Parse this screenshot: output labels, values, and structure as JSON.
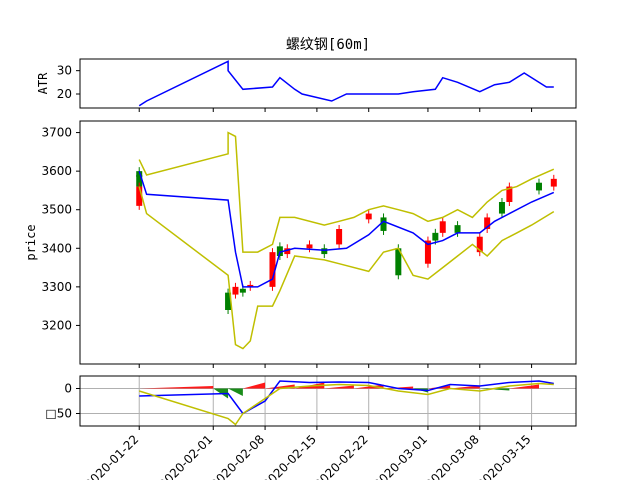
{
  "chart_data": {
    "type": "line",
    "title": "螺纹钢[60m]",
    "x_tick_labels": [
      "2020-01-22",
      "2020-02-01",
      "2020-02-08",
      "2020-02-15",
      "2020-02-22",
      "2020-03-01",
      "2020-03-08",
      "2020-03-15"
    ],
    "panels": [
      {
        "name": "atr",
        "ylabel": "ATR",
        "ylim": [
          14,
          35
        ],
        "yticks": [
          20,
          30
        ],
        "series": [
          {
            "color": "#0000ff",
            "x": [
              "2020-01-22",
              "2020-01-23",
              "2020-02-03",
              "2020-02-03",
              "2020-02-05",
              "2020-02-09",
              "2020-02-10",
              "2020-02-12",
              "2020-02-13",
              "2020-02-17",
              "2020-02-19",
              "2020-02-21",
              "2020-02-24",
              "2020-02-26",
              "2020-02-28",
              "2020-03-02",
              "2020-03-03",
              "2020-03-05",
              "2020-03-08",
              "2020-03-10",
              "2020-03-12",
              "2020-03-14",
              "2020-03-17",
              "2020-03-18"
            ],
            "values": [
              15,
              17,
              34,
              30,
              22,
              23,
              27,
              22,
              20,
              17,
              20,
              20,
              20,
              20,
              21,
              22,
              27,
              25,
              21,
              24,
              25,
              29,
              23,
              23
            ]
          }
        ]
      },
      {
        "name": "price",
        "ylabel": "price",
        "ylim": [
          3100,
          3730
        ],
        "yticks": [
          3200,
          3300,
          3400,
          3500,
          3600,
          3700
        ],
        "candles": [
          {
            "x": "2020-01-22",
            "open": 3600,
            "close": 3585,
            "up": false
          },
          {
            "x": "2020-01-22",
            "open": 3590,
            "close": 3560,
            "up": false
          },
          {
            "x": "2020-01-22",
            "open": 3560,
            "close": 3510,
            "up": true
          },
          {
            "x": "2020-02-03",
            "open": 3285,
            "close": 3240,
            "up": false
          },
          {
            "x": "2020-02-04",
            "open": 3300,
            "close": 3280,
            "up": true
          },
          {
            "x": "2020-02-05",
            "open": 3295,
            "close": 3285,
            "up": false
          },
          {
            "x": "2020-02-06",
            "open": 3305,
            "close": 3300,
            "up": true
          },
          {
            "x": "2020-02-09",
            "open": 3390,
            "close": 3300,
            "up": true
          },
          {
            "x": "2020-02-10",
            "open": 3405,
            "close": 3380,
            "up": false
          },
          {
            "x": "2020-02-11",
            "open": 3400,
            "close": 3385,
            "up": true
          },
          {
            "x": "2020-02-14",
            "open": 3410,
            "close": 3400,
            "up": true
          },
          {
            "x": "2020-02-16",
            "open": 3400,
            "close": 3385,
            "up": false
          },
          {
            "x": "2020-02-18",
            "open": 3450,
            "close": 3410,
            "up": true
          },
          {
            "x": "2020-02-22",
            "open": 3490,
            "close": 3475,
            "up": true
          },
          {
            "x": "2020-02-24",
            "open": 3480,
            "close": 3445,
            "up": false
          },
          {
            "x": "2020-02-26",
            "open": 3400,
            "close": 3330,
            "up": false
          },
          {
            "x": "2020-03-01",
            "open": 3420,
            "close": 3360,
            "up": true
          },
          {
            "x": "2020-03-02",
            "open": 3440,
            "close": 3420,
            "up": false
          },
          {
            "x": "2020-03-03",
            "open": 3470,
            "close": 3440,
            "up": true
          },
          {
            "x": "2020-03-05",
            "open": 3460,
            "close": 3440,
            "up": false
          },
          {
            "x": "2020-03-08",
            "open": 3430,
            "close": 3390,
            "up": true
          },
          {
            "x": "2020-03-09",
            "open": 3480,
            "close": 3450,
            "up": true
          },
          {
            "x": "2020-03-11",
            "open": 3520,
            "close": 3490,
            "up": false
          },
          {
            "x": "2020-03-12",
            "open": 3560,
            "close": 3520,
            "up": true
          },
          {
            "x": "2020-03-16",
            "open": 3570,
            "close": 3550,
            "up": false
          },
          {
            "x": "2020-03-18",
            "open": 3580,
            "close": 3560,
            "up": true
          }
        ],
        "series": [
          {
            "color": "#0000ff",
            "x": [
              "2020-01-22",
              "2020-01-23",
              "2020-02-03",
              "2020-02-04",
              "2020-02-05",
              "2020-02-07",
              "2020-02-09",
              "2020-02-10",
              "2020-02-12",
              "2020-02-16",
              "2020-02-19",
              "2020-02-22",
              "2020-02-24",
              "2020-02-28",
              "2020-03-01",
              "2020-03-03",
              "2020-03-05",
              "2020-03-08",
              "2020-03-10",
              "2020-03-12",
              "2020-03-15",
              "2020-03-18"
            ],
            "values": [
              3600,
              3540,
              3525,
              3390,
              3300,
              3300,
              3320,
              3390,
              3400,
              3395,
              3400,
              3435,
              3470,
              3440,
              3410,
              3420,
              3440,
              3440,
              3470,
              3490,
              3520,
              3545
            ]
          },
          {
            "color": "#bfbf00",
            "x": [
              "2020-01-22",
              "2020-01-23",
              "2020-02-03",
              "2020-02-03",
              "2020-02-04",
              "2020-02-05",
              "2020-02-07",
              "2020-02-09",
              "2020-02-10",
              "2020-02-12",
              "2020-02-16",
              "2020-02-18",
              "2020-02-20",
              "2020-02-22",
              "2020-02-24",
              "2020-02-26",
              "2020-02-28",
              "2020-03-01",
              "2020-03-03",
              "2020-03-05",
              "2020-03-07",
              "2020-03-09",
              "2020-03-11",
              "2020-03-13",
              "2020-03-15",
              "2020-03-18"
            ],
            "values": [
              3630,
              3590,
              3645,
              3700,
              3690,
              3390,
              3390,
              3410,
              3480,
              3480,
              3460,
              3470,
              3480,
              3500,
              3510,
              3500,
              3490,
              3470,
              3480,
              3500,
              3480,
              3520,
              3550,
              3560,
              3580,
              3605
            ]
          },
          {
            "color": "#bfbf00",
            "x": [
              "2020-01-22",
              "2020-01-23",
              "2020-02-03",
              "2020-02-04",
              "2020-02-05",
              "2020-02-06",
              "2020-02-07",
              "2020-02-09",
              "2020-02-10",
              "2020-02-12",
              "2020-02-16",
              "2020-02-18",
              "2020-02-22",
              "2020-02-24",
              "2020-02-26",
              "2020-02-28",
              "2020-03-01",
              "2020-03-03",
              "2020-03-05",
              "2020-03-07",
              "2020-03-09",
              "2020-03-11",
              "2020-03-13",
              "2020-03-15",
              "2020-03-18"
            ],
            "values": [
              3560,
              3490,
              3330,
              3150,
              3140,
              3160,
              3250,
              3250,
              3290,
              3380,
              3370,
              3360,
              3340,
              3390,
              3400,
              3330,
              3320,
              3350,
              3380,
              3410,
              3380,
              3420,
              3440,
              3460,
              3495
            ]
          }
        ]
      },
      {
        "name": "macd",
        "ylabel": "",
        "ylim": [
          -75,
          25
        ],
        "yticks": [
          0,
          -50
        ],
        "ytick_labels": [
          "0",
          "□50"
        ],
        "histogram": {
          "x": [
            "2020-01-22",
            "2020-02-01",
            "2020-02-03",
            "2020-02-05",
            "2020-02-08",
            "2020-02-12",
            "2020-02-16",
            "2020-02-20",
            "2020-02-24",
            "2020-02-28",
            "2020-03-01",
            "2020-03-04",
            "2020-03-08",
            "2020-03-12",
            "2020-03-16"
          ],
          "values": [
            5,
            -20,
            -15,
            12,
            8,
            12,
            6,
            8,
            4,
            -8,
            6,
            6,
            -4,
            8,
            6
          ]
        },
        "series": [
          {
            "color": "#0000ff",
            "x": [
              "2020-01-22",
              "2020-02-03",
              "2020-02-05",
              "2020-02-08",
              "2020-02-10",
              "2020-02-14",
              "2020-02-18",
              "2020-02-22",
              "2020-02-26",
              "2020-03-01",
              "2020-03-04",
              "2020-03-08",
              "2020-03-12",
              "2020-03-16",
              "2020-03-18"
            ],
            "values": [
              -15,
              -10,
              -50,
              -25,
              15,
              12,
              13,
              12,
              0,
              -4,
              8,
              5,
              12,
              15,
              10
            ]
          },
          {
            "color": "#bfbf00",
            "x": [
              "2020-01-22",
              "2020-02-03",
              "2020-02-04",
              "2020-02-05",
              "2020-02-07",
              "2020-02-10",
              "2020-02-14",
              "2020-02-18",
              "2020-02-22",
              "2020-02-26",
              "2020-03-01",
              "2020-03-04",
              "2020-03-08",
              "2020-03-12",
              "2020-03-16",
              "2020-03-18"
            ],
            "values": [
              -5,
              -60,
              -72,
              -50,
              -30,
              0,
              5,
              8,
              6,
              -5,
              -12,
              0,
              -5,
              5,
              10,
              8
            ]
          }
        ]
      }
    ],
    "grid": "x"
  }
}
